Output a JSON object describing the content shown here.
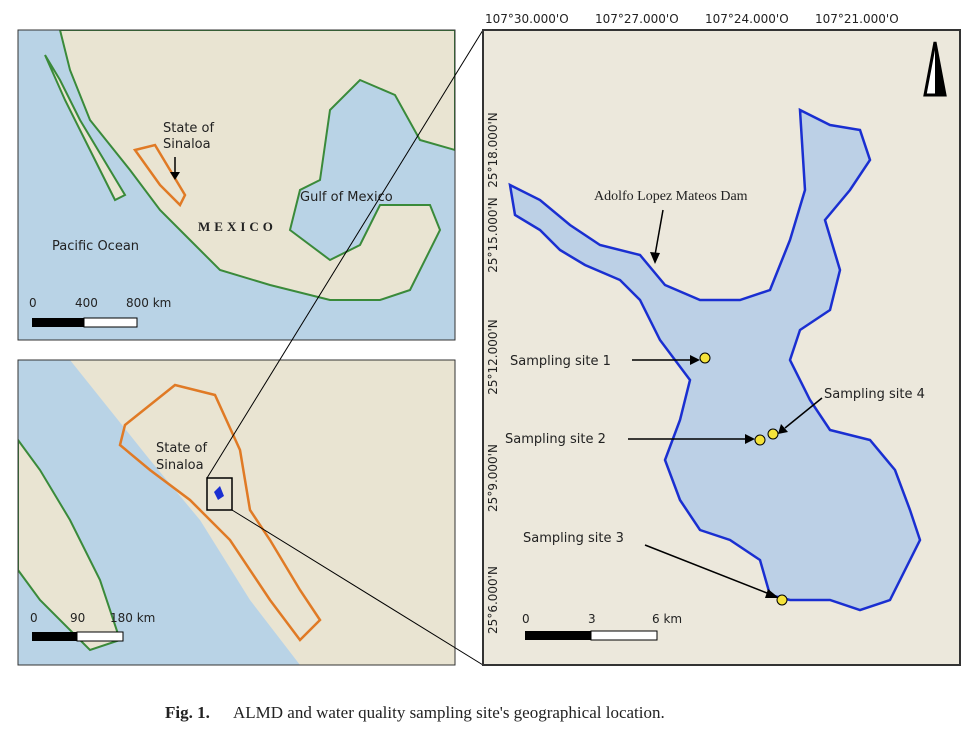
{
  "inset_mexico": {
    "region_label": [
      "State of",
      "Sinaloa"
    ],
    "gulf_label": "Gulf of Mexico",
    "country_label": "MEXICO",
    "ocean_label": "Pacific Ocean",
    "scale": [
      "0",
      "400",
      "800 km"
    ]
  },
  "inset_sinaloa": {
    "region_label": [
      "State of",
      "Sinaloa"
    ],
    "scale": [
      "0",
      "90",
      "180 km"
    ]
  },
  "main_map": {
    "longitudes": [
      "107°30.000'O",
      "107°27.000'O",
      "107°24.000'O",
      "107°21.000'O"
    ],
    "latitudes": [
      "25°18.000'N",
      "25°15.000'N",
      "25°12.000'N",
      "25°9.000'N",
      "25°6.000'N"
    ],
    "dam_label": "Adolfo Lopez Mateos Dam",
    "sites": [
      "Sampling site 1",
      "Sampling site 2",
      "Sampling site 3",
      "Sampling site 4"
    ],
    "scale": [
      "0",
      "3",
      "6 km"
    ]
  },
  "caption": {
    "label": "Fig. 1.",
    "text": "ALMD and water quality sampling site's geographical location."
  }
}
